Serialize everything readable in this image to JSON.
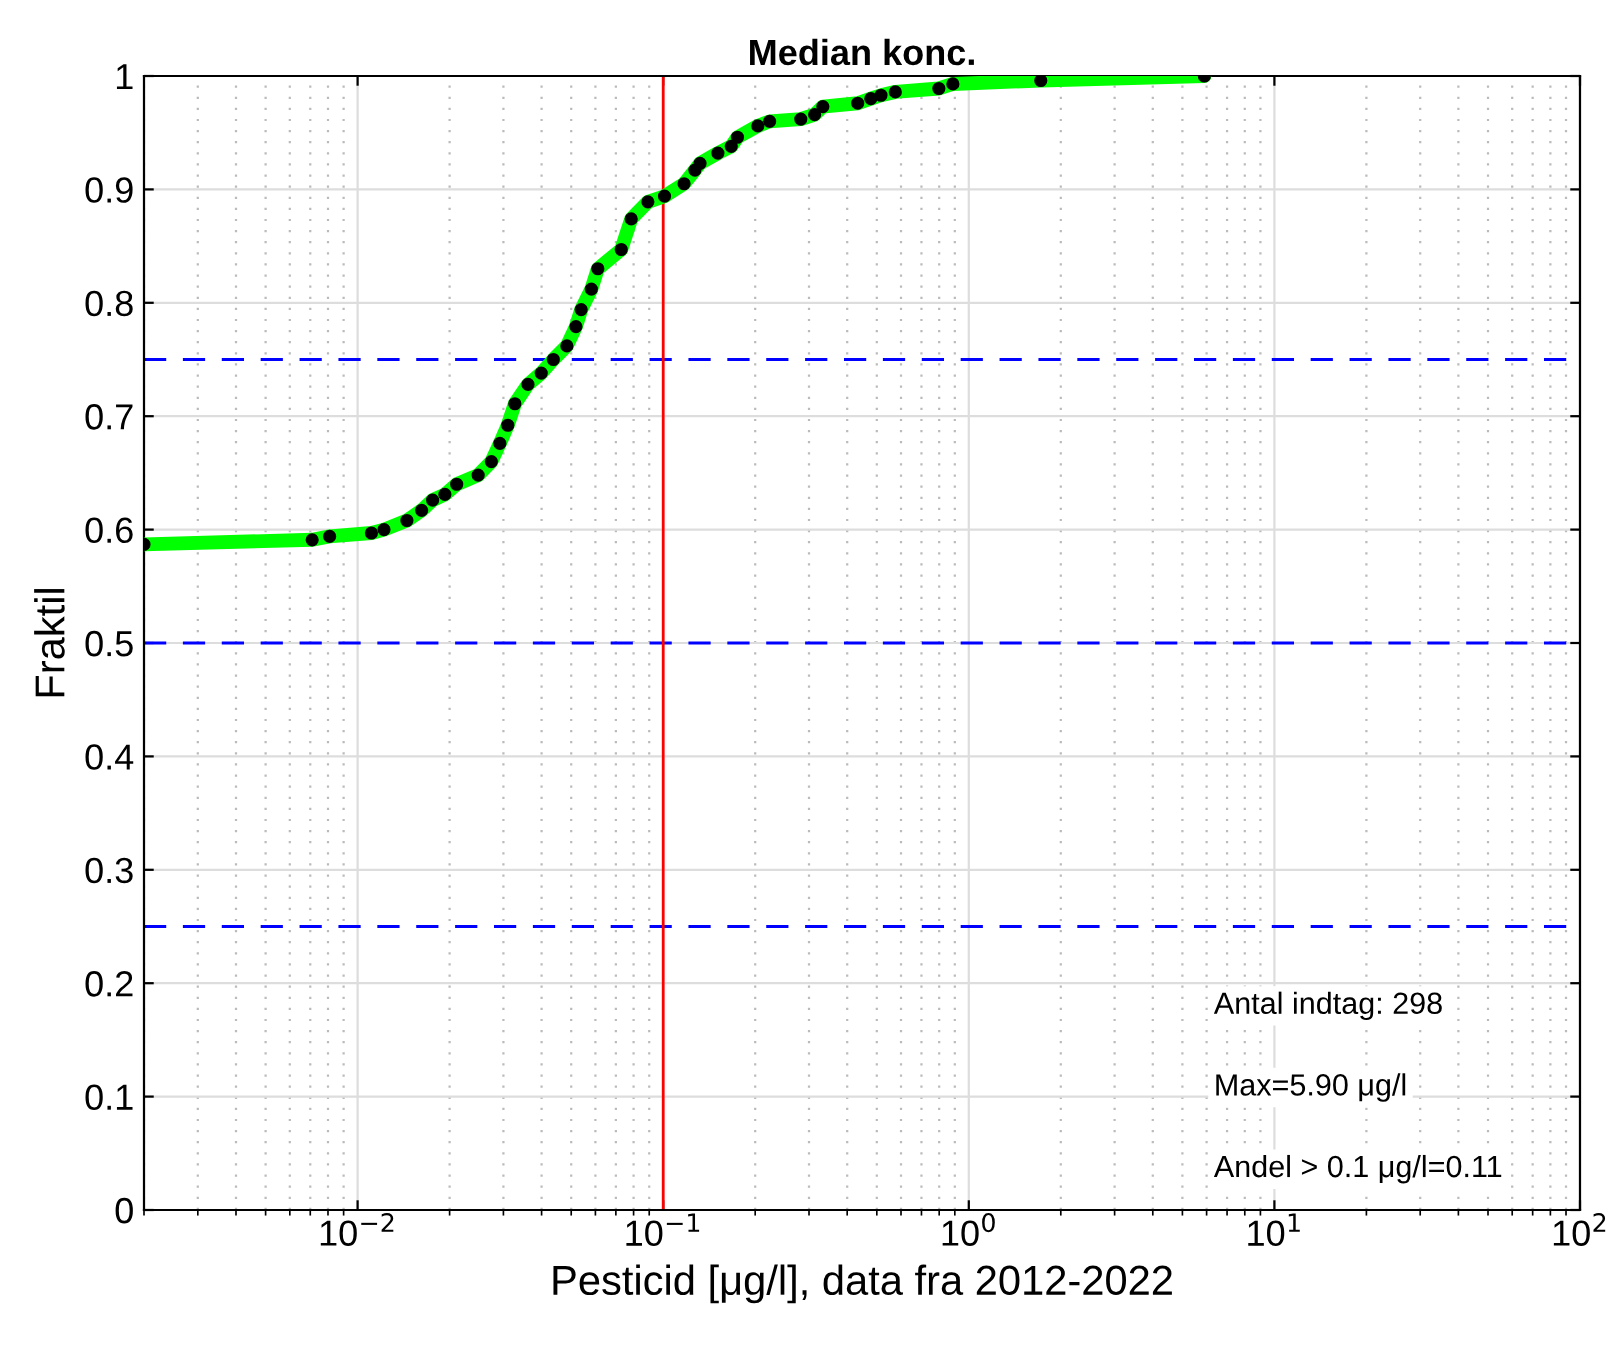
{
  "chart_data": {
    "type": "line",
    "title": "Median konc.",
    "xlabel": "Pesticid [μg/l], data fra 2012-2022",
    "ylabel": "Fraktil",
    "log": "x",
    "xlim": [
      0.002,
      100
    ],
    "ylim": [
      0,
      1
    ],
    "xticks": [
      {
        "value": 0.01,
        "label": "10$^{−2}$"
      },
      {
        "value": 0.1,
        "label": "10$^{−1}$"
      },
      {
        "value": 1,
        "label": "10$^{0}$"
      },
      {
        "value": 10,
        "label": "10$^{1}$"
      },
      {
        "value": 100,
        "label": "10$^{2}$"
      }
    ],
    "yticks": [
      0,
      0.1,
      0.2,
      0.3,
      0.4,
      0.5,
      0.6,
      0.7,
      0.8,
      0.9,
      1
    ],
    "grid": true,
    "x": [
      0.002,
      0.0071,
      0.0081,
      0.0111,
      0.0122,
      0.0145,
      0.0162,
      0.0176,
      0.0193,
      0.0211,
      0.0248,
      0.0274,
      0.0292,
      0.031,
      0.0327,
      0.0361,
      0.0399,
      0.0437,
      0.0484,
      0.0518,
      0.0539,
      0.0582,
      0.0611,
      0.0729,
      0.0786,
      0.0891,
      0.101,
      0.117,
      0.127,
      0.132,
      0.151,
      0.167,
      0.175,
      0.204,
      0.223,
      0.282,
      0.313,
      0.333,
      0.433,
      0.478,
      0.516,
      0.575,
      0.798,
      0.887,
      1.72,
      5.9
    ],
    "series": [
      {
        "color": "#00ff00",
        "marker": "none",
        "values": [
          0.587,
          0.591,
          0.594,
          0.597,
          0.6,
          0.608,
          0.617,
          0.626,
          0.631,
          0.64,
          0.648,
          0.66,
          0.676,
          0.692,
          0.711,
          0.728,
          0.738,
          0.75,
          0.762,
          0.779,
          0.794,
          0.812,
          0.83,
          0.847,
          0.874,
          0.889,
          0.894,
          0.905,
          0.917,
          0.923,
          0.932,
          0.938,
          0.946,
          0.956,
          0.96,
          0.962,
          0.966,
          0.973,
          0.976,
          0.98,
          0.983,
          0.986,
          0.989,
          0.993,
          0.996,
          1.0
        ]
      },
      {
        "type": "scatter",
        "color": "#000000",
        "marker": "circle",
        "values": [
          0.587,
          0.591,
          0.594,
          0.597,
          0.6,
          0.608,
          0.617,
          0.626,
          0.631,
          0.64,
          0.648,
          0.66,
          0.676,
          0.692,
          0.711,
          0.728,
          0.738,
          0.75,
          0.762,
          0.779,
          0.794,
          0.812,
          0.83,
          0.847,
          0.874,
          0.889,
          0.894,
          0.905,
          0.917,
          0.923,
          0.932,
          0.938,
          0.946,
          0.956,
          0.96,
          0.962,
          0.966,
          0.973,
          0.976,
          0.98,
          0.983,
          0.986,
          0.989,
          0.993,
          0.996,
          1.0
        ]
      }
    ],
    "ref_lines": [
      {
        "axis": "y",
        "value": 0.75,
        "color": "#0000ff",
        "line_style": "dashed"
      },
      {
        "axis": "y",
        "value": 0.5,
        "color": "#0000ff",
        "line_style": "dashed"
      },
      {
        "axis": "y",
        "value": 0.25,
        "color": "#0000ff",
        "line_style": "dashed"
      },
      {
        "axis": "x",
        "value": 0.1,
        "color": "#ff0000",
        "line_style": "solid"
      }
    ],
    "annotations": [
      "Antal indtag: 298",
      "Max=5.90 μg/l",
      "Andel > 0.1 μg/l=0.11"
    ]
  }
}
